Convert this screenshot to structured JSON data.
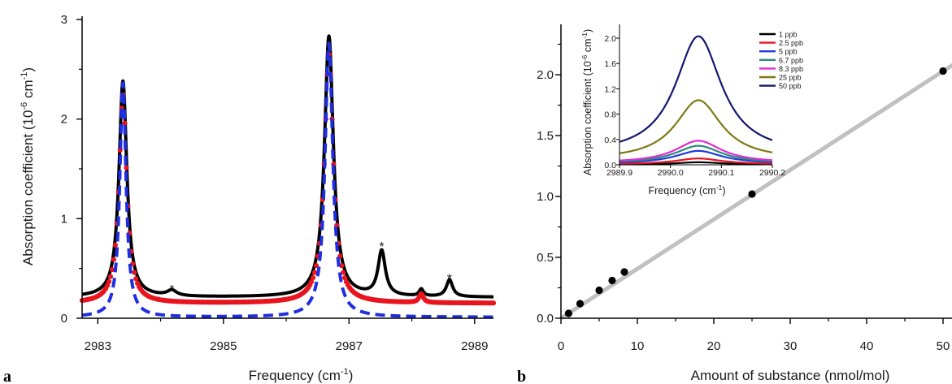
{
  "panel_labels": {
    "a": "a",
    "b": "b"
  },
  "chart_data": [
    {
      "id": "a",
      "type": "line",
      "xlabel_main": "Frequency (cm",
      "xlabel_sup": "-1",
      "xlabel_end": ")",
      "ylabel_main": "Absorption coefficient (10",
      "ylabel_sup1": "-6",
      "ylabel_mid": " cm",
      "ylabel_sup2": "-1",
      "ylabel_end": ")",
      "xlim": [
        2982.75,
        2989.3
      ],
      "ylim": [
        0,
        3
      ],
      "xticks": [
        2983,
        2985,
        2987,
        2989
      ],
      "yticks": [
        0,
        1,
        2,
        3
      ],
      "series": [
        {
          "style": "solid",
          "color": "#000000",
          "baseline": 0.21,
          "peaks": [
            {
              "x0": 2983.4,
              "amp": 2.17,
              "hwhm": 0.075
            },
            {
              "x0": 2986.68,
              "amp": 2.62,
              "hwhm": 0.085
            },
            {
              "x0": 2984.18,
              "amp": 0.055,
              "hwhm": 0.09
            },
            {
              "x0": 2987.52,
              "amp": 0.45,
              "hwhm": 0.07
            },
            {
              "x0": 2988.6,
              "amp": 0.17,
              "hwhm": 0.06
            },
            {
              "x0": 2988.15,
              "amp": 0.07,
              "hwhm": 0.04
            }
          ]
        },
        {
          "style": "dots",
          "color": "#e8141e",
          "baseline": 0.15,
          "peaks": [
            {
              "x0": 2983.4,
              "amp": 2.1,
              "hwhm": 0.075
            },
            {
              "x0": 2986.68,
              "amp": 2.5,
              "hwhm": 0.085
            },
            {
              "x0": 2988.15,
              "amp": 0.09,
              "hwhm": 0.04
            }
          ]
        },
        {
          "style": "dashed",
          "color": "#1f2ee0",
          "baseline": 0.01,
          "peaks": [
            {
              "x0": 2983.4,
              "amp": 2.35,
              "hwhm": 0.06
            },
            {
              "x0": 2986.68,
              "amp": 2.75,
              "hwhm": 0.075
            }
          ]
        }
      ],
      "annotations": [
        {
          "text": "*",
          "x": 2984.18,
          "y": 0.31
        },
        {
          "text": "*",
          "x": 2987.52,
          "y": 0.74
        },
        {
          "text": "*",
          "x": 2988.6,
          "y": 0.42
        }
      ]
    },
    {
      "id": "b",
      "type": "scatter",
      "xlabel": "Amount of substance (nmol/mol)",
      "xlim": [
        0,
        52
      ],
      "ylim": [
        0,
        2.3
      ],
      "xticks": [
        0,
        10,
        20,
        30,
        40,
        50
      ],
      "yticks": [
        "0.0",
        "0.5",
        "1.0",
        "1.5",
        "2.0"
      ],
      "points": [
        {
          "x": 1,
          "y": 0.04
        },
        {
          "x": 2.5,
          "y": 0.12
        },
        {
          "x": 5,
          "y": 0.23
        },
        {
          "x": 6.7,
          "y": 0.31
        },
        {
          "x": 8.3,
          "y": 0.38
        },
        {
          "x": 25,
          "y": 1.02
        },
        {
          "x": 50,
          "y": 2.03
        }
      ],
      "fit_line": {
        "x": [
          0,
          52
        ],
        "y": [
          0.0,
          2.11
        ],
        "color": "#c0c0c0"
      }
    },
    {
      "id": "inset",
      "type": "line",
      "xlabel_main": "Frequency (cm",
      "xlabel_sup": "-1",
      "xlabel_end": ")",
      "ylabel_main": "Absorption coefficient (10",
      "ylabel_sup1": "-6",
      "ylabel_mid": " cm",
      "ylabel_sup2": "-1",
      "ylabel_end": ")",
      "xlim": [
        2989.9,
        2990.2
      ],
      "ylim": [
        0,
        2.2
      ],
      "xticks": [
        "2989.9",
        "2990.0",
        "2990.1",
        "2990.2"
      ],
      "yticks": [
        "0.0",
        "0.4",
        "0.8",
        "1.2",
        "1.6",
        "2.0"
      ],
      "center": 2990.055,
      "hwhm": 0.055,
      "tail": 0.075,
      "series": [
        {
          "name": "1 ppb",
          "color": "#000000",
          "peak": 0.04
        },
        {
          "name": "2.5 ppb",
          "color": "#e8141e",
          "peak": 0.1
        },
        {
          "name": "5 ppb",
          "color": "#1f3ce0",
          "peak": 0.22
        },
        {
          "name": "6.7 ppb",
          "color": "#2a8a7a",
          "peak": 0.3
        },
        {
          "name": "8.3 ppb",
          "color": "#e22ad2",
          "peak": 0.38
        },
        {
          "name": "25 ppb",
          "color": "#7d7a14",
          "peak": 1.02
        },
        {
          "name": "50 ppb",
          "color": "#14166e",
          "peak": 2.03
        }
      ]
    }
  ]
}
